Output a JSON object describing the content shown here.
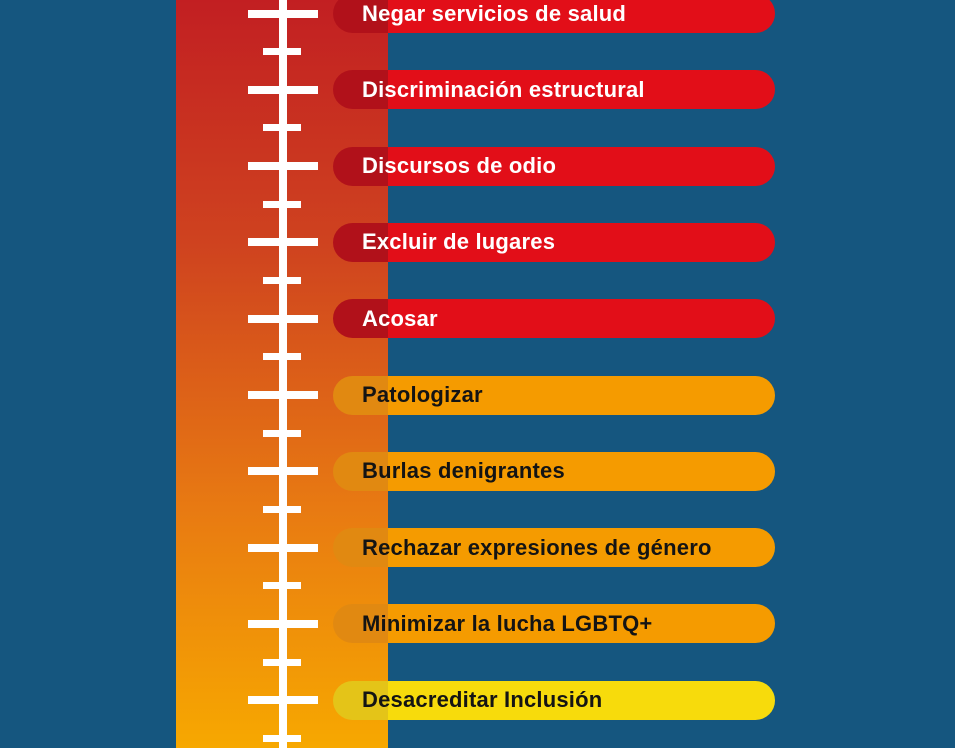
{
  "colors": {
    "background": "#15567F",
    "tick": "#FFFFFF",
    "thermometer_gradient": [
      "#C21F22",
      "#CF431F",
      "#E87A12",
      "#F7A800"
    ],
    "levels": {
      "red": {
        "body": "#E20E18",
        "cap": "#B1111A",
        "text": "#FFFFFF"
      },
      "orange": {
        "body": "#F59B00",
        "cap": "#E18911",
        "text": "#141414"
      },
      "yellow": {
        "body": "#F7DB0C",
        "cap": "#E4C418",
        "text": "#141414"
      }
    }
  },
  "thermometer": {
    "long_tick_count": 10,
    "short_tick_count": 10
  },
  "pills": [
    {
      "label": "Negar servicios de salud",
      "level": "red"
    },
    {
      "label": "Discriminación estructural",
      "level": "red"
    },
    {
      "label": "Discursos de odio",
      "level": "red"
    },
    {
      "label": "Excluir de lugares",
      "level": "red"
    },
    {
      "label": "Acosar",
      "level": "red"
    },
    {
      "label": "Patologizar",
      "level": "orange"
    },
    {
      "label": "Burlas denigrantes",
      "level": "orange"
    },
    {
      "label": "Rechazar expresiones de género",
      "level": "orange"
    },
    {
      "label": "Minimizar la lucha LGBTQ+",
      "level": "orange"
    },
    {
      "label": "Desacreditar Inclusión",
      "level": "yellow"
    }
  ]
}
